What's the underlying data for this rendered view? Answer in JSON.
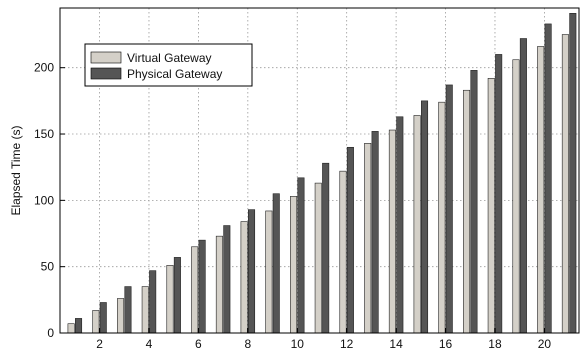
{
  "chart_data": {
    "type": "bar",
    "title": "",
    "xlabel": "",
    "ylabel": "Elapsed Time (s)",
    "categories": [
      1,
      2,
      3,
      4,
      5,
      6,
      7,
      8,
      9,
      10,
      11,
      12,
      13,
      14,
      15,
      16,
      17,
      18,
      19,
      20,
      21
    ],
    "x_ticks": [
      2,
      4,
      6,
      8,
      10,
      12,
      14,
      16,
      18,
      20
    ],
    "y_ticks": [
      0,
      50,
      100,
      150,
      200
    ],
    "xlim": [
      0.4,
      21.4
    ],
    "ylim": [
      0,
      245
    ],
    "grid": true,
    "legend_position": "top-left",
    "series": [
      {
        "name": "Virtual Gateway",
        "color": "#d4d0c8",
        "values": [
          7,
          17,
          26,
          35,
          51,
          65,
          73,
          84,
          92,
          103,
          113,
          122,
          143,
          153,
          164,
          174,
          183,
          192,
          206,
          216,
          225
        ]
      },
      {
        "name": "Physical Gateway",
        "color": "#555555",
        "values": [
          11,
          23,
          35,
          47,
          57,
          70,
          81,
          93,
          105,
          117,
          128,
          140,
          152,
          163,
          175,
          187,
          198,
          210,
          222,
          233,
          241
        ]
      }
    ]
  }
}
